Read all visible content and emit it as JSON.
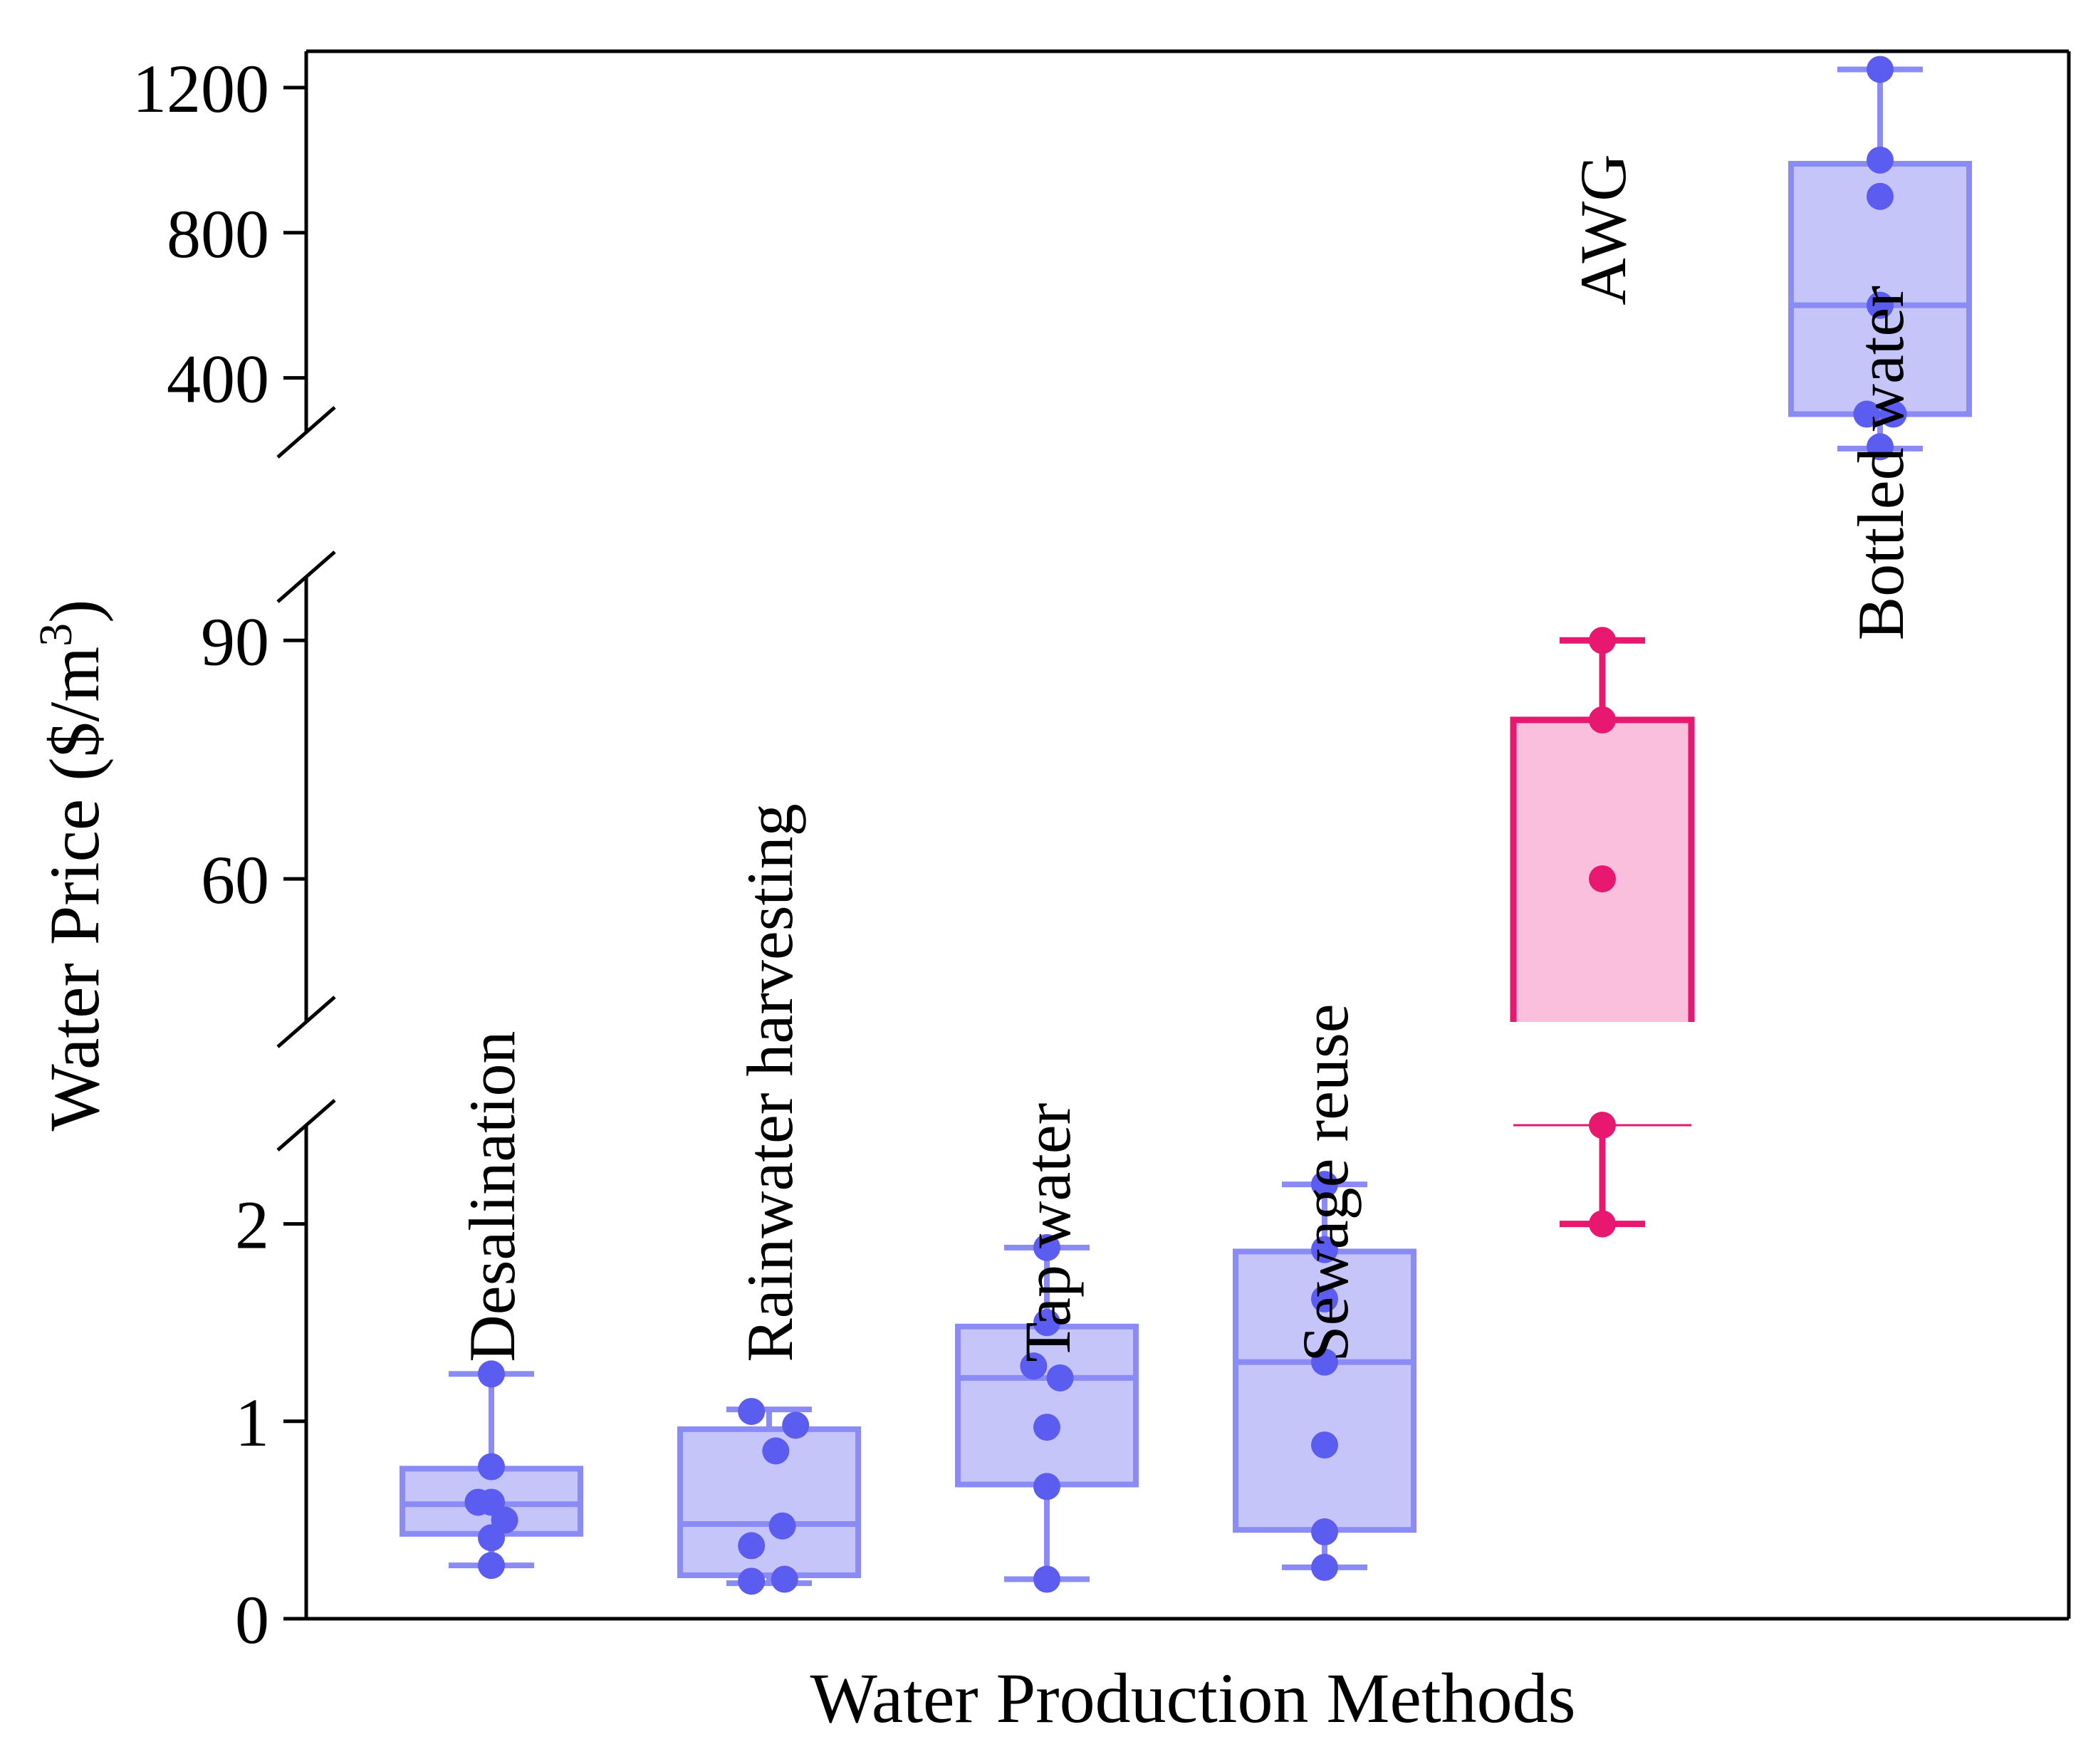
{
  "chart_data": {
    "type": "box",
    "xlabel": "Water Production Methods",
    "ylabel": "Water Price ($/m",
    "ylabel_superscript": "3",
    "ylabel_suffix": ")",
    "y_segments": [
      {
        "name": "low",
        "range": [
          0,
          2.5
        ],
        "ticks": [
          0,
          1,
          2
        ]
      },
      {
        "name": "mid",
        "range": [
          42,
          98
        ],
        "ticks": [
          60,
          90
        ]
      },
      {
        "name": "high",
        "range": [
          250,
          1300
        ],
        "ticks": [
          400,
          800,
          1200
        ]
      }
    ],
    "series": [
      {
        "name": "Desalination",
        "color": "#5b5cf0",
        "fill": "#c5c5fa",
        "label_anchor": 1.3,
        "box": {
          "q1": 0.43,
          "median": 0.58,
          "q3": 0.76,
          "whisker_low": 0.27,
          "whisker_high": 1.24
        },
        "points": [
          [
            0,
            1.24
          ],
          [
            0,
            0.77
          ],
          [
            -0.3,
            0.59
          ],
          [
            0,
            0.59
          ],
          [
            0.3,
            0.5
          ],
          [
            0,
            0.41
          ],
          [
            0,
            0.27
          ]
        ]
      },
      {
        "name": "Rainwater harvesting",
        "color": "#5b5cf0",
        "fill": "#c5c5fa",
        "label_anchor": 1.3,
        "box": {
          "q1": 0.22,
          "median": 0.48,
          "q3": 0.96,
          "whisker_low": 0.18,
          "whisker_high": 1.06
        },
        "points": [
          [
            -0.4,
            1.05
          ],
          [
            0.6,
            0.98
          ],
          [
            0.15,
            0.85
          ],
          [
            0.3,
            0.47
          ],
          [
            -0.4,
            0.37
          ],
          [
            -0.4,
            0.19
          ],
          [
            0.35,
            0.2
          ]
        ]
      },
      {
        "name": "Tap water",
        "color": "#5b5cf0",
        "fill": "#c5c5fa",
        "label_anchor": 1.3,
        "box": {
          "q1": 0.68,
          "median": 1.22,
          "q3": 1.48,
          "whisker_low": 0.2,
          "whisker_high": 1.88
        },
        "points": [
          [
            0,
            1.88
          ],
          [
            0,
            1.5
          ],
          [
            -0.3,
            1.28
          ],
          [
            0.3,
            1.22
          ],
          [
            0,
            0.97
          ],
          [
            0,
            0.67
          ],
          [
            0,
            0.2
          ]
        ]
      },
      {
        "name": "Sewage reuse",
        "color": "#5b5cf0",
        "fill": "#c5c5fa",
        "label_anchor": 1.3,
        "box": {
          "q1": 0.45,
          "median": 1.3,
          "q3": 1.86,
          "whisker_low": 0.26,
          "whisker_high": 2.2
        },
        "points": [
          [
            0,
            2.2
          ],
          [
            0,
            1.87
          ],
          [
            0,
            1.62
          ],
          [
            0,
            1.3
          ],
          [
            0,
            0.88
          ],
          [
            0,
            0.44
          ],
          [
            0,
            0.26
          ]
        ]
      },
      {
        "name": "AWG",
        "color": "#e8176f",
        "fill": "#f9bfdc",
        "label_anchor": 600,
        "box": {
          "q1": 2.5,
          "median": 2.5,
          "q3": 80,
          "whisker_low": 2.0,
          "whisker_high": 90
        },
        "points": [
          [
            0,
            90
          ],
          [
            0,
            80
          ],
          [
            0,
            60
          ],
          [
            0,
            2.5
          ],
          [
            0,
            2.0
          ]
        ]
      },
      {
        "name": "Bottled water",
        "color": "#5b5cf0",
        "fill": "#c5c5fa",
        "label_anchor": 90,
        "box": {
          "q1": 300,
          "median": 600,
          "q3": 990,
          "whisker_low": 205,
          "whisker_high": 1250
        },
        "points": [
          [
            0,
            1250
          ],
          [
            0,
            1000
          ],
          [
            0,
            900
          ],
          [
            0,
            600
          ],
          [
            -0.3,
            300
          ],
          [
            0.3,
            300
          ],
          [
            0,
            210
          ]
        ]
      }
    ]
  }
}
